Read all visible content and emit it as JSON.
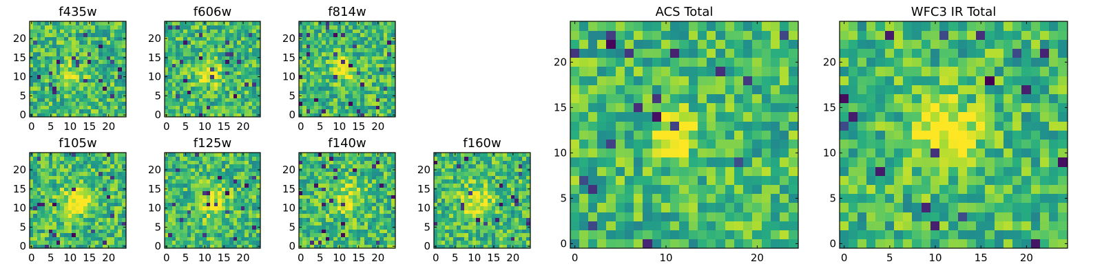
{
  "chart_data": [
    {
      "type": "heatmap",
      "title": "f435w",
      "grid": false,
      "colormap": "viridis",
      "size": 25,
      "xlim": [
        0,
        24
      ],
      "ylim": [
        0,
        24
      ],
      "xticks": [
        "0",
        "5",
        "10",
        "15",
        "20"
      ],
      "yticks": [
        "0",
        "5",
        "10",
        "15",
        "20"
      ],
      "peak": {
        "x": 11,
        "y": 11,
        "width": 2.0,
        "strength": 0.25
      }
    },
    {
      "type": "heatmap",
      "title": "f606w",
      "grid": false,
      "colormap": "viridis",
      "size": 25,
      "xlim": [
        0,
        24
      ],
      "ylim": [
        0,
        24
      ],
      "xticks": [
        "0",
        "5",
        "10",
        "15",
        "20"
      ],
      "yticks": [
        "0",
        "5",
        "10",
        "15",
        "20"
      ],
      "peak": {
        "x": 11,
        "y": 11,
        "width": 2.0,
        "strength": 0.4
      }
    },
    {
      "type": "heatmap",
      "title": "f814w",
      "grid": false,
      "colormap": "viridis",
      "size": 25,
      "xlim": [
        0,
        24
      ],
      "ylim": [
        0,
        24
      ],
      "xticks": [
        "0",
        "5",
        "10",
        "15",
        "20"
      ],
      "yticks": [
        "0",
        "5",
        "10",
        "15",
        "20"
      ],
      "peak": {
        "x": 11,
        "y": 12,
        "width": 2.0,
        "strength": 0.4
      }
    },
    {
      "type": "heatmap",
      "title": "f105w",
      "grid": false,
      "colormap": "viridis",
      "size": 25,
      "xlim": [
        0,
        24
      ],
      "ylim": [
        0,
        24
      ],
      "xticks": [
        "0",
        "5",
        "10",
        "15",
        "20"
      ],
      "yticks": [
        "0",
        "5",
        "10",
        "15",
        "20"
      ],
      "peak": {
        "x": 12,
        "y": 12,
        "width": 3.0,
        "strength": 0.4
      }
    },
    {
      "type": "heatmap",
      "title": "f125w",
      "grid": false,
      "colormap": "viridis",
      "size": 25,
      "xlim": [
        0,
        24
      ],
      "ylim": [
        0,
        24
      ],
      "xticks": [
        "0",
        "5",
        "10",
        "15",
        "20"
      ],
      "yticks": [
        "0",
        "5",
        "10",
        "15",
        "20"
      ],
      "peak": {
        "x": 12,
        "y": 12,
        "width": 3.0,
        "strength": 0.3
      }
    },
    {
      "type": "heatmap",
      "title": "f140w",
      "grid": false,
      "colormap": "viridis",
      "size": 25,
      "xlim": [
        0,
        24
      ],
      "ylim": [
        0,
        24
      ],
      "xticks": [
        "0",
        "5",
        "10",
        "15",
        "20"
      ],
      "yticks": [
        "0",
        "5",
        "10",
        "15",
        "20"
      ],
      "peak": {
        "x": 12,
        "y": 12,
        "width": 3.0,
        "strength": 0.25
      }
    },
    {
      "type": "heatmap",
      "title": "f160w",
      "grid": false,
      "colormap": "viridis",
      "size": 25,
      "xlim": [
        0,
        24
      ],
      "ylim": [
        0,
        24
      ],
      "xticks": [
        "0",
        "5",
        "10",
        "15",
        "20"
      ],
      "yticks": [
        "0",
        "5",
        "10",
        "15",
        "20"
      ],
      "peak": {
        "x": 11,
        "y": 12,
        "width": 3.0,
        "strength": 0.35
      }
    },
    {
      "type": "heatmap",
      "title": "ACS Total",
      "grid": false,
      "colormap": "viridis",
      "size": 25,
      "xlim": [
        0,
        24
      ],
      "ylim": [
        0,
        24
      ],
      "xticks": [
        "0",
        "10",
        "20"
      ],
      "yticks": [
        "0",
        "5",
        "10",
        "15",
        "20"
      ],
      "peak": {
        "x": 11,
        "y": 12,
        "width": 1.8,
        "strength": 0.45
      }
    },
    {
      "type": "heatmap",
      "title": "WFC3 IR Total",
      "grid": false,
      "colormap": "viridis",
      "size": 25,
      "xlim": [
        0,
        24
      ],
      "ylim": [
        0,
        24
      ],
      "xticks": [
        "0",
        "5",
        "10",
        "15",
        "20"
      ],
      "yticks": [
        "0",
        "5",
        "10",
        "15",
        "20"
      ],
      "peak": {
        "x": 11.5,
        "y": 12,
        "width": 2.6,
        "strength": 0.45
      }
    }
  ]
}
